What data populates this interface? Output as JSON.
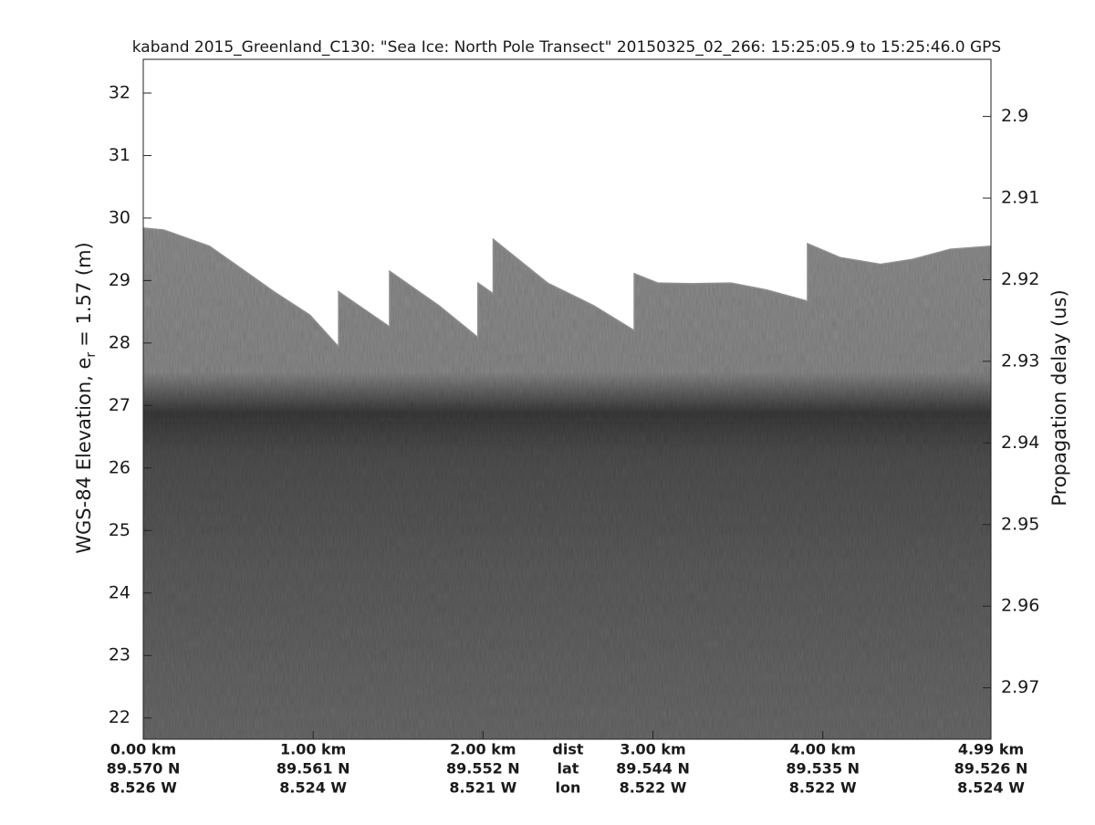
{
  "chart_data": {
    "type": "echogram",
    "title": "kaband 2015_Greenland_C130: \"Sea Ice: North Pole Transect\"  20150325_02_266: 15:25:05.9 to 15:25:46.0 GPS",
    "ylabel": {
      "main": "WGS-84 Elevation, e",
      "sub": "r",
      "rest": "= 1.57 (m)"
    },
    "y2label": "Propagation delay (us)",
    "xlim": [
      0,
      4.99
    ],
    "xticks": [
      {
        "value": 0,
        "label": "0.00 km"
      },
      {
        "value": 1,
        "label": "1.00 km"
      },
      {
        "value": 2,
        "label": "2.00 km"
      },
      {
        "value": 3,
        "label": "3.00 km"
      },
      {
        "value": 4,
        "label": "4.00 km"
      },
      {
        "value": 4.99,
        "label": "4.99 km"
      }
    ],
    "row_names": [
      "dist",
      "lat",
      "lon"
    ],
    "lat_labels": [
      "89.570 N",
      "89.561 N",
      "89.552 N",
      "89.544 N",
      "89.535 N",
      "89.526 N"
    ],
    "lon_labels": [
      "8.526 W",
      "8.524 W",
      "8.521 W",
      "8.522 W",
      "8.522 W",
      "8.524 W"
    ],
    "ylim": [
      21.66,
      32.54
    ],
    "yticks": [
      22,
      23,
      24,
      25,
      26,
      27,
      28,
      29,
      30,
      31,
      32
    ],
    "y2lim": [
      2.9763,
      2.893
    ],
    "y2ticks": [
      2.9,
      2.91,
      2.92,
      2.93,
      2.94,
      2.95,
      2.96,
      2.97
    ],
    "series": [
      {
        "color": "#8f8f8f",
        "x": [
          0,
          0.12,
          0.39,
          0.77,
          0.98,
          1.15,
          1.15,
          1.45,
          1.45,
          1.74,
          1.97,
          1.97,
          2.06,
          2.06,
          2.38,
          2.65,
          2.89,
          2.89,
          3.03,
          3.24,
          3.46,
          3.67,
          3.91,
          3.91,
          4.1,
          4.34,
          4.53,
          4.75,
          4.99
        ],
        "values": [
          29.84,
          29.81,
          29.55,
          28.82,
          28.45,
          27.94,
          28.82,
          28.26,
          29.15,
          28.6,
          28.09,
          28.96,
          28.79,
          29.66,
          28.96,
          28.6,
          28.2,
          29.11,
          28.96,
          28.95,
          28.96,
          28.85,
          28.67,
          29.59,
          29.37,
          29.26,
          29.34,
          29.5,
          29.55
        ]
      }
    ]
  }
}
